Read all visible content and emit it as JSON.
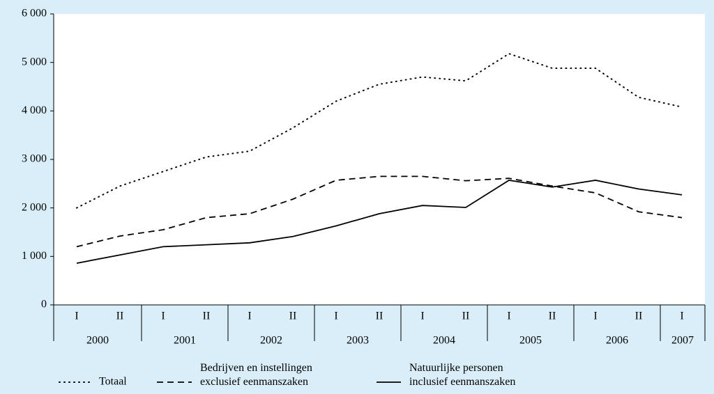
{
  "chart_data": {
    "type": "line",
    "categories": [
      "I",
      "II",
      "I",
      "II",
      "I",
      "II",
      "I",
      "II",
      "I",
      "II",
      "I",
      "II",
      "I",
      "II",
      "I"
    ],
    "year_groups": [
      "2000",
      "2001",
      "2002",
      "2003",
      "2004",
      "2005",
      "2006",
      "2007"
    ],
    "ylim": [
      0,
      6000
    ],
    "yticks": [
      0,
      {
        "value": 1000,
        "label": "1 000"
      },
      {
        "value": 2000,
        "label": "2 000"
      },
      {
        "value": 3000,
        "label": "3 000"
      },
      {
        "value": 4000,
        "label": "4 000"
      },
      {
        "value": 5000,
        "label": "5 000"
      },
      {
        "value": 6000,
        "label": "6 000"
      }
    ],
    "grid": false,
    "series": [
      {
        "name": "Totaal",
        "color": "#000000",
        "dash": "dotted",
        "values": [
          2000,
          2450,
          2750,
          3050,
          3170,
          3650,
          4200,
          4550,
          4700,
          4620,
          5180,
          4880,
          4880,
          4280,
          4080
        ]
      },
      {
        "name": "Bedrijven en instellingen\nexclusief eenmanszaken",
        "color": "#000000",
        "dash": "dashed",
        "values": [
          1200,
          1420,
          1550,
          1800,
          1880,
          2180,
          2570,
          2650,
          2650,
          2560,
          2610,
          2450,
          2310,
          1920,
          1800
        ]
      },
      {
        "name": "Natuurlijke personen\ninclusief eenmanszaken",
        "color": "#000000",
        "dash": "solid",
        "values": [
          860,
          1030,
          1200,
          1240,
          1280,
          1410,
          1630,
          1880,
          2050,
          2010,
          2570,
          2430,
          2570,
          2390,
          2270
        ]
      }
    ]
  }
}
